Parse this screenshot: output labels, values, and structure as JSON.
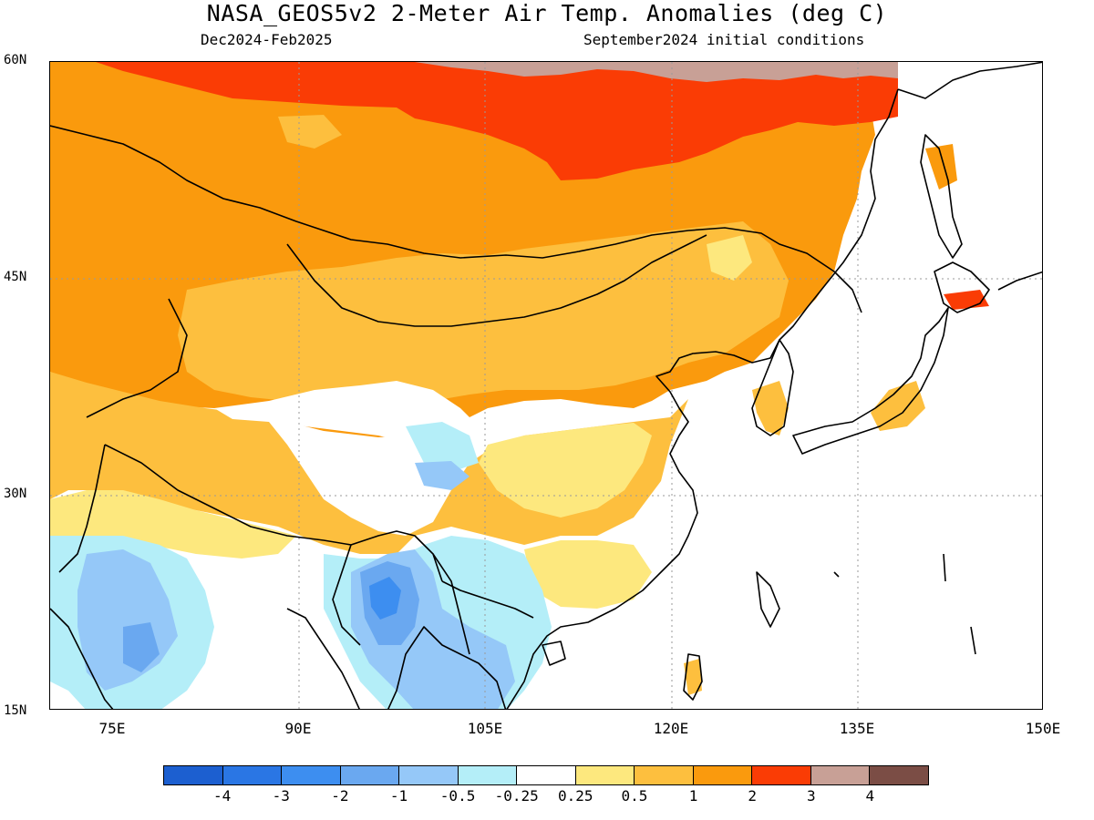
{
  "title": "NASA_GEOS5v2 2-Meter Air Temp. Anomalies (deg C)",
  "subtitle_left": "Dec2024-Feb2025",
  "subtitle_right": "September2024 initial conditions",
  "lat_labels": [
    "60N",
    "45N",
    "30N",
    "15N"
  ],
  "lon_labels": [
    "75E",
    "90E",
    "105E",
    "120E",
    "135E",
    "150E"
  ],
  "colorbar": {
    "tick_labels": [
      "-4",
      "-3",
      "-2",
      "-1",
      "-0.5",
      "-0.25",
      "0.25",
      "0.5",
      "1",
      "2",
      "3",
      "4"
    ],
    "colors": [
      "#1c5fd0",
      "#2a76e4",
      "#3d8ef0",
      "#6aa8f0",
      "#95c8f8",
      "#b4eef8",
      "#ffffff",
      "#fde87e",
      "#fdbf3e",
      "#fa9a0d",
      "#fa3c05",
      "#c8a096",
      "#7b4d45"
    ]
  },
  "map": {
    "region": {
      "lon_min": 70,
      "lon_max": 150,
      "lat_min": 15,
      "lat_max": 60
    },
    "ocean_color": "#ffffff",
    "coast_color": "#000000"
  }
}
